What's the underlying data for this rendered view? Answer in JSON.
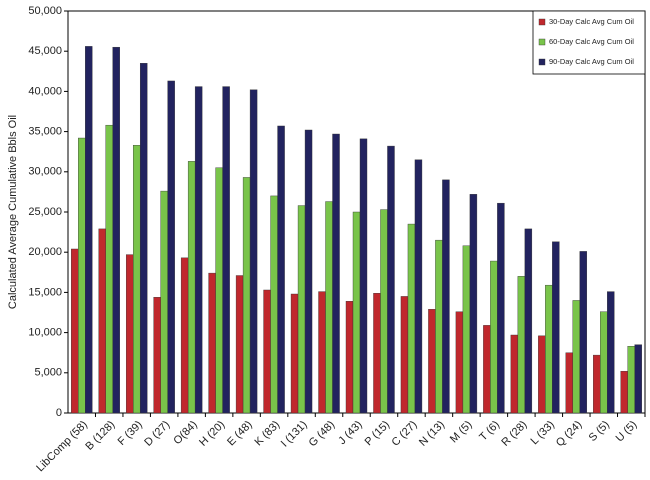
{
  "chart_data": {
    "type": "bar",
    "y_label": "Calculated Average Cumulative Bbls Oil",
    "categories": [
      "LibComp (58)",
      "B (128)",
      "F (39)",
      "D (27)",
      "O(84)",
      "H (20)",
      "E (48)",
      "K (83)",
      "I (131)",
      "G (48)",
      "J (43)",
      "P (15)",
      "C (27)",
      "N (13)",
      "M (5)",
      "T (6)",
      "R (28)",
      "L (33)",
      "Q (24)",
      "S (5)",
      "U (5)"
    ],
    "series": [
      {
        "name": "30-Day Calc Avg Cum Oil",
        "color": "#c0282d",
        "values": [
          20400,
          22900,
          19700,
          14400,
          19300,
          17400,
          17100,
          15300,
          14800,
          15100,
          13900,
          14900,
          14500,
          12900,
          12600,
          10900,
          9700,
          9600,
          7500,
          7200,
          5200
        ]
      },
      {
        "name": "60-Day Calc Avg Cum Oil",
        "color": "#79c44a",
        "values": [
          34200,
          35800,
          33300,
          27600,
          31300,
          30500,
          29300,
          27000,
          25800,
          26300,
          25000,
          25300,
          23500,
          21500,
          20800,
          18900,
          17000,
          15900,
          14000,
          12600,
          8300
        ]
      },
      {
        "name": "90-Day Calc Avg Cum Oil",
        "color": "#22235f",
        "values": [
          45600,
          45500,
          43500,
          41300,
          40600,
          40600,
          40200,
          35700,
          35200,
          34700,
          34100,
          33200,
          31500,
          29000,
          27200,
          26100,
          22900,
          21300,
          20100,
          15100,
          8500
        ]
      }
    ],
    "ylim": [
      0,
      50000
    ],
    "yticks": [
      0,
      {
        "value": 5000,
        "label": "5,000"
      },
      {
        "value": 10000,
        "label": "10,000"
      },
      {
        "value": 15000,
        "label": "15,000"
      },
      {
        "value": 20000,
        "label": "20,000"
      },
      {
        "value": 25000,
        "label": "25,000"
      },
      {
        "value": 30000,
        "label": "30,000"
      },
      {
        "value": 35000,
        "label": "35,000"
      },
      {
        "value": 40000,
        "label": "40,000"
      },
      {
        "value": 45000,
        "label": "45,000"
      },
      {
        "value": 50000,
        "label": "50,000"
      }
    ],
    "grid": false,
    "legend": "upper right"
  }
}
